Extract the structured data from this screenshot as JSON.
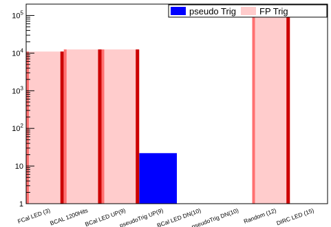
{
  "chart_data": {
    "type": "bar",
    "yscale": "log",
    "ylim": [
      1,
      200000
    ],
    "categories": [
      "FCal LED (3)",
      "BCAL 1200Hits",
      "BCal LED UP(9)",
      "pseudoTrig UP(9)",
      "BCal LED DN(10)",
      "pseudoTrig DN(10)",
      "Random (12)",
      "DIRC LED (15)"
    ],
    "yticks": [
      {
        "value": 1,
        "label": "1"
      },
      {
        "value": 10,
        "label": "10"
      },
      {
        "value": 100,
        "label": "10",
        "sup": "2"
      },
      {
        "value": 1000,
        "label": "10",
        "sup": "3"
      },
      {
        "value": 10000,
        "label": "10",
        "sup": "4"
      },
      {
        "value": 100000,
        "label": "10",
        "sup": "5"
      }
    ],
    "series": [
      {
        "name": "pseudo Trig",
        "color": "#0000ff",
        "values": [
          0,
          0,
          0,
          22,
          0,
          0,
          0,
          0
        ]
      },
      {
        "name": "FP Trig",
        "color": "#ffcccc",
        "edge_color": "#cc0000",
        "values": [
          11000,
          12500,
          12500,
          0,
          0,
          0,
          120000,
          0
        ]
      }
    ],
    "legend_position": "top-right",
    "grid": false
  }
}
